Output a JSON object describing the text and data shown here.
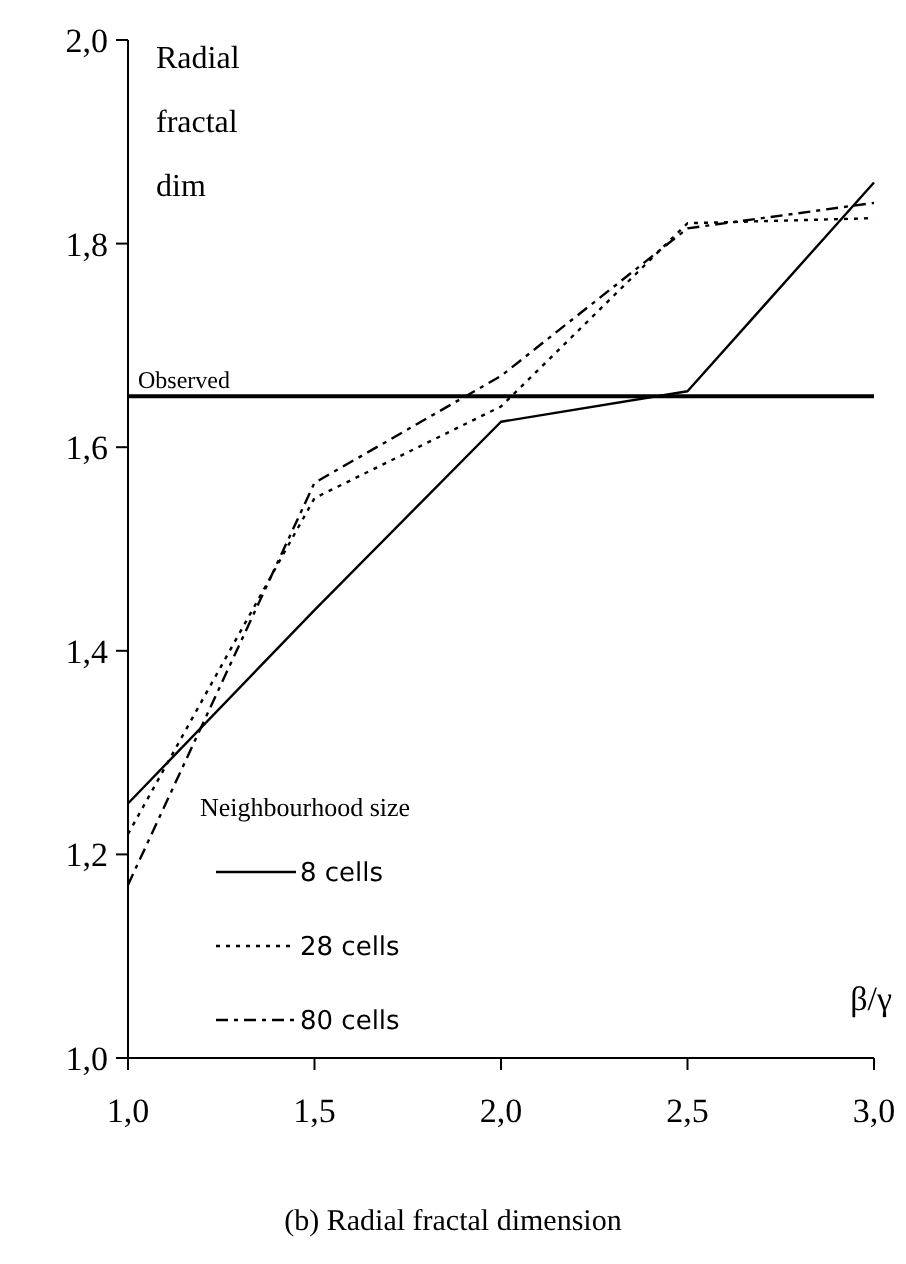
{
  "chart_data": {
    "type": "line",
    "ylabel": "Radial fractal dim",
    "xlabel": "β/γ",
    "legend_title": "Neighbourhood size",
    "legend": "bottom left",
    "x": [
      1.0,
      1.5,
      2.0,
      2.5,
      3.0
    ],
    "series": [
      {
        "name": "8 cells",
        "color": "#000000",
        "line_style": "solid",
        "values": [
          1.25,
          1.44,
          1.625,
          1.655,
          1.86
        ]
      },
      {
        "name": "28 cells",
        "color": "#000000",
        "line_style": "dotted",
        "values": [
          1.22,
          1.55,
          1.64,
          1.82,
          1.825
        ]
      },
      {
        "name": "80 cells",
        "color": "#000000",
        "line_style": "dashdot",
        "values": [
          1.17,
          1.565,
          1.67,
          1.815,
          1.84
        ]
      }
    ],
    "xlim": [
      1.0,
      3.0
    ],
    "xticks": [
      {
        "value": 1.0,
        "label": "1,0"
      },
      {
        "value": 1.5,
        "label": "1,5"
      },
      {
        "value": 2.0,
        "label": "2,0"
      },
      {
        "value": 2.5,
        "label": "2,5"
      },
      {
        "value": 3.0,
        "label": "3,0"
      }
    ],
    "ylim": [
      1.0,
      2.0
    ],
    "yticks": [
      {
        "value": 1.0,
        "label": "1,0"
      },
      {
        "value": 1.2,
        "label": "1,2"
      },
      {
        "value": 1.4,
        "label": "1,4"
      },
      {
        "value": 1.6,
        "label": "1,6"
      },
      {
        "value": 1.8,
        "label": "1,8"
      },
      {
        "value": 2.0,
        "label": "2,0"
      }
    ],
    "ref_lines": [
      {
        "axis": "y",
        "value": 1.65,
        "label": "Observed",
        "color": "#000000"
      }
    ],
    "annotations": [
      "(b) Radial fractal dimension"
    ],
    "grid": false
  }
}
